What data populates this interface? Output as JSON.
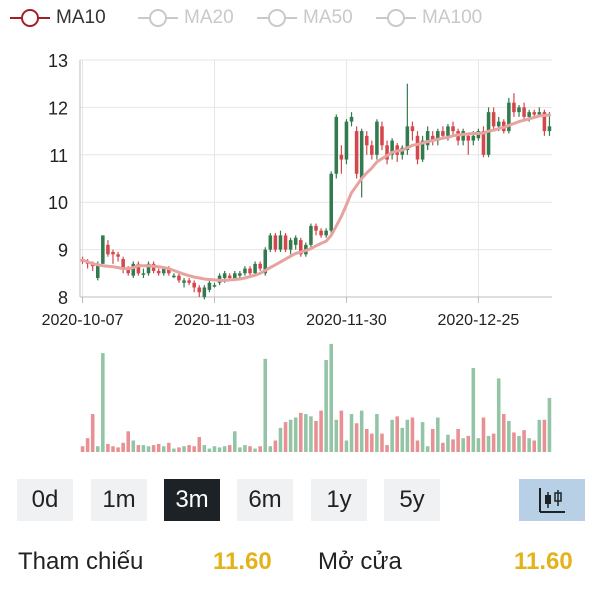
{
  "legend": {
    "items": [
      {
        "label": "MA10",
        "color": "#a31f24",
        "active": true
      },
      {
        "label": "MA20",
        "color": "#c9c9c9",
        "active": false
      },
      {
        "label": "MA50",
        "color": "#c9c9c9",
        "active": false
      },
      {
        "label": "MA100",
        "color": "#c9c9c9",
        "active": false
      }
    ]
  },
  "chart_data": {
    "type": "candlestick",
    "y_ticks": [
      "8",
      "9",
      "10",
      "11",
      "12",
      "13"
    ],
    "ylim": [
      8,
      13
    ],
    "x_tick_labels": [
      "2020-10-07",
      "2020-11-03",
      "2020-11-30",
      "2020-12-25"
    ],
    "grid": true,
    "colors": {
      "up": "#347a4f",
      "down": "#d4474c",
      "ma10": "#e6a3a0",
      "vol_up": "#93c4a6",
      "vol_down": "#e89092"
    },
    "candles": [
      [
        8.8,
        8.75,
        8.85,
        8.7
      ],
      [
        8.75,
        8.7,
        8.8,
        8.6
      ],
      [
        8.7,
        8.65,
        8.75,
        8.55
      ],
      [
        8.4,
        8.7,
        8.75,
        8.35
      ],
      [
        8.7,
        9.3,
        9.3,
        8.7
      ],
      [
        9.1,
        8.9,
        9.2,
        8.85
      ],
      [
        8.95,
        8.9,
        9.0,
        8.7
      ],
      [
        8.9,
        8.85,
        8.95,
        8.75
      ],
      [
        8.8,
        8.6,
        8.85,
        8.5
      ],
      [
        8.6,
        8.5,
        8.65,
        8.45
      ],
      [
        8.45,
        8.7,
        8.75,
        8.4
      ],
      [
        8.7,
        8.5,
        8.75,
        8.45
      ],
      [
        8.5,
        8.5,
        8.6,
        8.4
      ],
      [
        8.5,
        8.7,
        8.75,
        8.45
      ],
      [
        8.7,
        8.55,
        8.75,
        8.5
      ],
      [
        8.55,
        8.5,
        8.6,
        8.45
      ],
      [
        8.5,
        8.6,
        8.65,
        8.45
      ],
      [
        8.6,
        8.5,
        8.65,
        8.45
      ],
      [
        8.45,
        8.45,
        8.5,
        8.4
      ],
      [
        8.45,
        8.35,
        8.5,
        8.3
      ],
      [
        8.3,
        8.35,
        8.4,
        8.2
      ],
      [
        8.35,
        8.3,
        8.4,
        8.25
      ],
      [
        8.3,
        8.2,
        8.35,
        8.1
      ],
      [
        8.2,
        8.1,
        8.25,
        8.0
      ],
      [
        8.0,
        8.2,
        8.25,
        7.95
      ],
      [
        8.15,
        8.3,
        8.35,
        8.1
      ],
      [
        8.25,
        8.25,
        8.3,
        8.2
      ],
      [
        8.3,
        8.45,
        8.5,
        8.25
      ],
      [
        8.4,
        8.5,
        8.55,
        8.3
      ],
      [
        8.45,
        8.4,
        8.5,
        8.35
      ],
      [
        8.4,
        8.5,
        8.55,
        8.35
      ],
      [
        8.45,
        8.5,
        8.55,
        8.4
      ],
      [
        8.5,
        8.6,
        8.65,
        8.45
      ],
      [
        8.6,
        8.5,
        8.65,
        8.45
      ],
      [
        8.5,
        8.7,
        8.75,
        8.45
      ],
      [
        8.7,
        8.6,
        8.75,
        8.55
      ],
      [
        8.5,
        9.0,
        9.05,
        8.45
      ],
      [
        9.0,
        9.3,
        9.35,
        8.95
      ],
      [
        9.3,
        9.0,
        9.35,
        8.95
      ],
      [
        9.0,
        9.3,
        9.4,
        8.95
      ],
      [
        9.3,
        9.0,
        9.35,
        8.95
      ],
      [
        9.0,
        9.2,
        9.25,
        8.9
      ],
      [
        9.1,
        9.25,
        9.3,
        9.0
      ],
      [
        9.2,
        8.9,
        9.25,
        8.85
      ],
      [
        8.9,
        9.1,
        9.15,
        8.85
      ],
      [
        9.1,
        9.5,
        9.55,
        9.05
      ],
      [
        9.5,
        9.4,
        9.55,
        9.3
      ],
      [
        9.4,
        9.3,
        9.45,
        9.25
      ],
      [
        9.3,
        9.4,
        9.45,
        9.25
      ],
      [
        9.4,
        10.6,
        10.65,
        9.35
      ],
      [
        10.6,
        11.8,
        11.85,
        10.5
      ],
      [
        11.0,
        10.9,
        11.2,
        10.6
      ],
      [
        10.9,
        11.7,
        11.75,
        10.8
      ],
      [
        11.7,
        11.8,
        11.9,
        11.6
      ],
      [
        11.5,
        10.6,
        11.6,
        10.5
      ],
      [
        10.5,
        11.5,
        11.55,
        10.1
      ],
      [
        11.4,
        11.2,
        11.5,
        11.0
      ],
      [
        11.2,
        11.0,
        11.3,
        10.9
      ],
      [
        11.0,
        11.7,
        11.75,
        10.9
      ],
      [
        11.6,
        11.2,
        11.7,
        11.1
      ],
      [
        11.2,
        10.9,
        11.3,
        10.8
      ],
      [
        11.0,
        11.3,
        11.35,
        10.9
      ],
      [
        11.2,
        11.0,
        11.25,
        10.85
      ],
      [
        11.0,
        11.15,
        11.2,
        10.9
      ],
      [
        11.1,
        11.6,
        12.5,
        11.0
      ],
      [
        11.6,
        11.5,
        11.7,
        11.3
      ],
      [
        11.4,
        10.9,
        11.5,
        10.8
      ],
      [
        10.9,
        11.3,
        11.4,
        10.85
      ],
      [
        11.2,
        11.5,
        11.6,
        11.1
      ],
      [
        11.4,
        11.3,
        11.5,
        11.2
      ],
      [
        11.3,
        11.5,
        11.55,
        11.2
      ],
      [
        11.5,
        11.4,
        11.6,
        11.35
      ],
      [
        11.4,
        11.6,
        11.65,
        11.3
      ],
      [
        11.6,
        11.5,
        11.7,
        11.4
      ],
      [
        11.5,
        11.3,
        11.55,
        11.2
      ],
      [
        11.3,
        11.5,
        11.55,
        11.2
      ],
      [
        11.4,
        11.3,
        11.45,
        11.0
      ],
      [
        11.3,
        11.4,
        11.5,
        11.2
      ],
      [
        11.35,
        11.5,
        11.55,
        11.3
      ],
      [
        11.5,
        11.0,
        11.6,
        10.95
      ],
      [
        11.0,
        11.9,
        12.0,
        10.95
      ],
      [
        11.9,
        11.6,
        12.0,
        11.5
      ],
      [
        11.6,
        11.7,
        11.8,
        11.5
      ],
      [
        11.7,
        11.5,
        11.75,
        11.45
      ],
      [
        11.5,
        12.1,
        12.2,
        11.45
      ],
      [
        12.1,
        11.9,
        12.3,
        11.8
      ],
      [
        11.9,
        12.0,
        12.05,
        11.8
      ],
      [
        12.0,
        11.8,
        12.1,
        11.7
      ],
      [
        11.8,
        11.9,
        11.95,
        11.7
      ],
      [
        11.9,
        11.85,
        11.95,
        11.8
      ],
      [
        11.85,
        11.9,
        12.0,
        11.8
      ],
      [
        11.9,
        11.5,
        11.95,
        11.4
      ],
      [
        11.5,
        11.6,
        11.9,
        11.4
      ]
    ],
    "ma10": [
      8.78,
      8.74,
      8.7,
      8.68,
      8.66,
      8.65,
      8.64,
      8.62,
      8.6,
      8.6,
      8.62,
      8.66,
      8.66,
      8.66,
      8.65,
      8.64,
      8.62,
      8.6,
      8.56,
      8.52,
      8.48,
      8.45,
      8.42,
      8.4,
      8.38,
      8.37,
      8.36,
      8.35,
      8.35,
      8.36,
      8.37,
      8.38,
      8.4,
      8.43,
      8.46,
      8.5,
      8.56,
      8.62,
      8.68,
      8.74,
      8.8,
      8.86,
      8.92,
      8.95,
      8.98,
      9.02,
      9.08,
      9.13,
      9.18,
      9.3,
      9.5,
      9.7,
      9.95,
      10.2,
      10.35,
      10.5,
      10.62,
      10.72,
      10.85,
      10.92,
      10.98,
      11.05,
      11.08,
      11.1,
      11.15,
      11.2,
      11.22,
      11.25,
      11.28,
      11.3,
      11.33,
      11.35,
      11.37,
      11.4,
      11.42,
      11.43,
      11.44,
      11.45,
      11.45,
      11.46,
      11.5,
      11.52,
      11.55,
      11.58,
      11.62,
      11.66,
      11.7,
      11.73,
      11.76,
      11.79,
      11.82,
      11.83,
      11.84
    ],
    "volumes": [
      0.05,
      0.12,
      0.33,
      0.05,
      0.86,
      0.07,
      0.05,
      0.04,
      0.08,
      0.18,
      0.1,
      0.06,
      0.06,
      0.05,
      0.06,
      0.07,
      0.05,
      0.08,
      0.03,
      0.04,
      0.05,
      0.06,
      0.05,
      0.13,
      0.06,
      0.03,
      0.05,
      0.04,
      0.05,
      0.06,
      0.18,
      0.04,
      0.06,
      0.05,
      0.03,
      0.05,
      0.81,
      0.05,
      0.1,
      0.21,
      0.26,
      0.28,
      0.3,
      0.34,
      0.33,
      0.31,
      0.27,
      0.36,
      0.8,
      0.94,
      0.28,
      0.36,
      0.1,
      0.33,
      0.25,
      0.36,
      0.2,
      0.16,
      0.33,
      0.16,
      0.06,
      0.28,
      0.31,
      0.21,
      0.28,
      0.3,
      0.1,
      0.26,
      0.05,
      0.2,
      0.3,
      0.08,
      0.15,
      0.11,
      0.2,
      0.12,
      0.14,
      0.73,
      0.12,
      0.3,
      0.14,
      0.16,
      0.64,
      0.33,
      0.27,
      0.17,
      0.14,
      0.19,
      0.12,
      0.1,
      0.28,
      0.28,
      0.47
    ]
  },
  "timeframes": {
    "items": [
      "0d",
      "1m",
      "3m",
      "6m",
      "1y",
      "5y"
    ],
    "active": "3m"
  },
  "toolbar": {
    "indicator_icon": "candlestick-chart-icon"
  },
  "stats": {
    "reference_label": "Tham chiếu",
    "reference_value": "11.60",
    "open_label": "Mở cửa",
    "open_value": "11.60"
  }
}
